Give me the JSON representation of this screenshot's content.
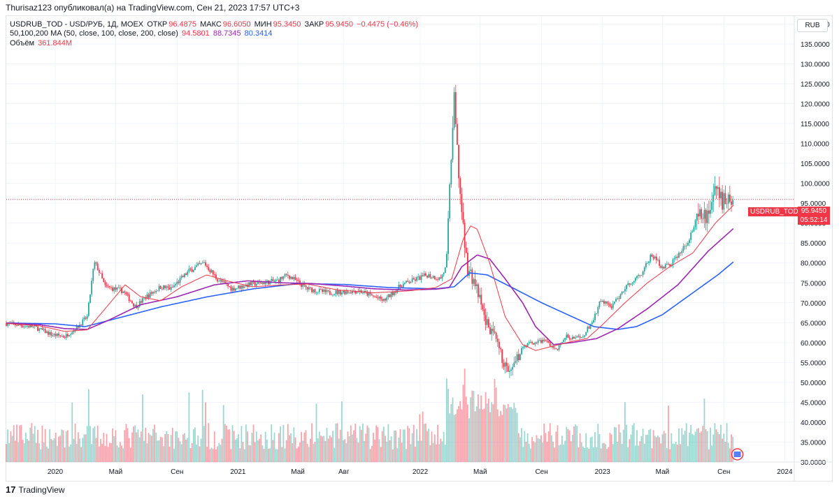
{
  "header": {
    "published": "Thurisaz123 опубликовал(а) на TradingView.com, Сен 21, 2023 17:57 UTC+3"
  },
  "legend": {
    "symbol": "USDRUB_TOD - USD/РУБ, 1Д, MOEX",
    "open_label": "ОТКР",
    "open": "96.4875",
    "high_label": "МАКС",
    "high": "96.6050",
    "low_label": "МИН",
    "low": "95.3450",
    "close_label": "ЗАКР",
    "close": "95.9450",
    "change": "−0.4475 (−0.46%)",
    "ma_label": "50,100,200 MA (50, close, 100, close, 200, close)",
    "ma50": "94.5801",
    "ma100": "88.7345",
    "ma200": "80.3414",
    "volume_label": "Объём",
    "volume": "361.844M"
  },
  "currency_button": "RUB",
  "price_tag": {
    "symbol": "USDRUB_TOD",
    "price": "95.9450",
    "countdown": "05:52:14"
  },
  "footer": {
    "logo": "17",
    "brand": "TradingView"
  },
  "colors": {
    "up": "#26a69a",
    "down": "#f23645",
    "ma50": "#f23645",
    "ma100": "#9c27b0",
    "ma200": "#2962ff",
    "grid": "#f0f3fa",
    "axis_text": "#131722"
  },
  "chart_data": {
    "type": "candlestick",
    "symbol": "USDRUB_TOD",
    "ylim": [
      30,
      142
    ],
    "y_ticks": [
      30,
      35,
      40,
      45,
      50,
      55,
      60,
      65,
      70,
      75,
      80,
      85,
      90,
      95,
      100,
      105,
      110,
      115,
      120,
      125,
      130,
      135,
      140
    ],
    "y_tick_labels": [
      "30.0000",
      "35.0000",
      "40.0000",
      "45.0000",
      "50.0000",
      "55.0000",
      "60.0000",
      "65.0000",
      "70.0000",
      "75.0000",
      "80.0000",
      "85.0000",
      "90.0000",
      "95.0000",
      "100.0000",
      "105.0000",
      "110.0000",
      "115.0000",
      "120.0000",
      "125.0000",
      "130.0000",
      "135.0000",
      "140.0000"
    ],
    "x_tick_labels": [
      "2020",
      "Май",
      "Сен",
      "2021",
      "Май",
      "Авг",
      "2022",
      "Май",
      "Сен",
      "2023",
      "Май",
      "Сен",
      "2024"
    ],
    "x_tick_dates": [
      "2020-01-01",
      "2020-05-01",
      "2020-09-01",
      "2021-01-01",
      "2021-05-01",
      "2021-08-01",
      "2022-01-01",
      "2022-05-01",
      "2022-09-01",
      "2023-01-01",
      "2023-05-01",
      "2023-09-01",
      "2024-01-01"
    ],
    "xlim": [
      "2019-09-25",
      "2024-01-20"
    ],
    "price_anchors": [
      [
        "2019-09-25",
        64.8
      ],
      [
        "2019-11-20",
        63.9
      ],
      [
        "2019-12-25",
        62.0
      ],
      [
        "2020-01-20",
        61.5
      ],
      [
        "2020-02-15",
        64.0
      ],
      [
        "2020-03-05",
        66.5
      ],
      [
        "2020-03-19",
        80.0
      ],
      [
        "2020-03-25",
        79.0
      ],
      [
        "2020-04-10",
        74.0
      ],
      [
        "2020-05-15",
        73.0
      ],
      [
        "2020-06-10",
        69.0
      ],
      [
        "2020-07-01",
        71.5
      ],
      [
        "2020-07-30",
        74.0
      ],
      [
        "2020-08-20",
        73.5
      ],
      [
        "2020-09-25",
        78.0
      ],
      [
        "2020-10-25",
        80.0
      ],
      [
        "2020-11-20",
        76.0
      ],
      [
        "2020-12-20",
        73.5
      ],
      [
        "2021-01-20",
        74.5
      ],
      [
        "2021-03-20",
        75.5
      ],
      [
        "2021-04-10",
        77.0
      ],
      [
        "2021-05-20",
        73.5
      ],
      [
        "2021-07-01",
        72.5
      ],
      [
        "2021-09-01",
        73.0
      ],
      [
        "2021-10-20",
        70.5
      ],
      [
        "2021-11-25",
        74.5
      ],
      [
        "2022-01-15",
        77.0
      ],
      [
        "2022-02-10",
        76.0
      ],
      [
        "2022-02-22",
        79.0
      ],
      [
        "2022-02-28",
        95.0
      ],
      [
        "2022-03-05",
        110.0
      ],
      [
        "2022-03-10",
        120.0
      ],
      [
        "2022-03-18",
        104.0
      ],
      [
        "2022-03-28",
        88.0
      ],
      [
        "2022-04-05",
        79.0
      ],
      [
        "2022-04-20",
        75.0
      ],
      [
        "2022-05-10",
        66.0
      ],
      [
        "2022-05-30",
        61.0
      ],
      [
        "2022-06-20",
        54.0
      ],
      [
        "2022-07-01",
        52.0
      ],
      [
        "2022-07-25",
        59.0
      ],
      [
        "2022-08-15",
        60.0
      ],
      [
        "2022-09-10",
        60.5
      ],
      [
        "2022-09-30",
        58.0
      ],
      [
        "2022-10-20",
        61.5
      ],
      [
        "2022-11-20",
        61.0
      ],
      [
        "2022-12-15",
        66.0
      ],
      [
        "2022-12-28",
        70.5
      ],
      [
        "2023-01-20",
        69.0
      ],
      [
        "2023-02-20",
        74.5
      ],
      [
        "2023-03-20",
        77.5
      ],
      [
        "2023-04-10",
        82.0
      ],
      [
        "2023-05-01",
        79.0
      ],
      [
        "2023-05-15",
        79.5
      ],
      [
        "2023-06-15",
        84.0
      ],
      [
        "2023-07-10",
        91.0
      ],
      [
        "2023-07-31",
        92.0
      ],
      [
        "2023-08-14",
        99.0
      ],
      [
        "2023-08-28",
        95.5
      ],
      [
        "2023-09-10",
        97.0
      ],
      [
        "2023-09-21",
        95.9
      ]
    ],
    "ma50": [
      [
        "2019-09-25",
        64.8
      ],
      [
        "2019-12-01",
        64.2
      ],
      [
        "2020-01-20",
        62.8
      ],
      [
        "2020-03-05",
        63.2
      ],
      [
        "2020-04-10",
        68.5
      ],
      [
        "2020-05-20",
        74.5
      ],
      [
        "2020-06-20",
        71.5
      ],
      [
        "2020-07-30",
        70.5
      ],
      [
        "2020-09-10",
        74.0
      ],
      [
        "2020-10-30",
        77.0
      ],
      [
        "2020-12-10",
        75.5
      ],
      [
        "2021-01-30",
        74.0
      ],
      [
        "2021-04-01",
        74.5
      ],
      [
        "2021-05-20",
        74.7
      ],
      [
        "2021-07-20",
        73.2
      ],
      [
        "2021-10-01",
        72.5
      ],
      [
        "2021-12-10",
        73.0
      ],
      [
        "2022-02-01",
        73.8
      ],
      [
        "2022-03-05",
        76.0
      ],
      [
        "2022-03-28",
        86.0
      ],
      [
        "2022-04-12",
        89.3
      ],
      [
        "2022-04-25",
        88.5
      ],
      [
        "2022-05-20",
        80.0
      ],
      [
        "2022-06-20",
        66.5
      ],
      [
        "2022-07-25",
        59.5
      ],
      [
        "2022-08-20",
        58.0
      ],
      [
        "2022-09-30",
        59.3
      ],
      [
        "2022-11-01",
        60.3
      ],
      [
        "2022-12-01",
        61.0
      ],
      [
        "2023-01-01",
        64.5
      ],
      [
        "2023-02-15",
        70.0
      ],
      [
        "2023-04-01",
        75.0
      ],
      [
        "2023-05-15",
        79.0
      ],
      [
        "2023-07-01",
        82.5
      ],
      [
        "2023-08-15",
        90.0
      ],
      [
        "2023-09-21",
        94.58
      ]
    ],
    "ma100": [
      [
        "2019-09-25",
        64.9
      ],
      [
        "2019-12-01",
        64.5
      ],
      [
        "2020-01-20",
        63.5
      ],
      [
        "2020-03-05",
        63.3
      ],
      [
        "2020-04-15",
        65.5
      ],
      [
        "2020-06-20",
        69.5
      ],
      [
        "2020-09-01",
        71.5
      ],
      [
        "2020-11-15",
        74.5
      ],
      [
        "2021-01-20",
        75.5
      ],
      [
        "2021-04-01",
        75.0
      ],
      [
        "2021-06-01",
        74.8
      ],
      [
        "2021-08-01",
        74.2
      ],
      [
        "2021-10-01",
        73.5
      ],
      [
        "2021-12-01",
        73.2
      ],
      [
        "2022-02-01",
        73.4
      ],
      [
        "2022-02-28",
        73.8
      ],
      [
        "2022-03-25",
        79.0
      ],
      [
        "2022-04-25",
        82.0
      ],
      [
        "2022-05-20",
        81.0
      ],
      [
        "2022-06-20",
        76.0
      ],
      [
        "2022-07-25",
        70.0
      ],
      [
        "2022-08-20",
        64.0
      ],
      [
        "2022-09-25",
        59.5
      ],
      [
        "2022-11-01",
        60.0
      ],
      [
        "2022-12-20",
        61.0
      ],
      [
        "2023-02-01",
        63.5
      ],
      [
        "2023-04-01",
        68.5
      ],
      [
        "2023-06-01",
        74.5
      ],
      [
        "2023-08-01",
        83.0
      ],
      [
        "2023-09-21",
        88.73
      ]
    ],
    "ma200": [
      [
        "2019-09-25",
        64.9
      ],
      [
        "2020-01-01",
        64.7
      ],
      [
        "2020-03-01",
        64.0
      ],
      [
        "2020-05-01",
        66.0
      ],
      [
        "2020-08-01",
        69.0
      ],
      [
        "2020-11-01",
        71.5
      ],
      [
        "2021-02-01",
        73.5
      ],
      [
        "2021-05-01",
        74.8
      ],
      [
        "2021-08-01",
        74.6
      ],
      [
        "2021-11-01",
        73.8
      ],
      [
        "2022-02-01",
        73.5
      ],
      [
        "2022-03-10",
        74.0
      ],
      [
        "2022-04-10",
        77.5
      ],
      [
        "2022-05-15",
        77.0
      ],
      [
        "2022-07-01",
        74.0
      ],
      [
        "2022-09-01",
        70.0
      ],
      [
        "2022-11-01",
        66.5
      ],
      [
        "2022-12-15",
        64.0
      ],
      [
        "2023-02-01",
        63.3
      ],
      [
        "2023-03-10",
        64.0
      ],
      [
        "2023-05-01",
        67.0
      ],
      [
        "2023-07-01",
        72.5
      ],
      [
        "2023-08-20",
        77.0
      ],
      [
        "2023-09-21",
        80.34
      ]
    ],
    "last_price": 95.945
  }
}
